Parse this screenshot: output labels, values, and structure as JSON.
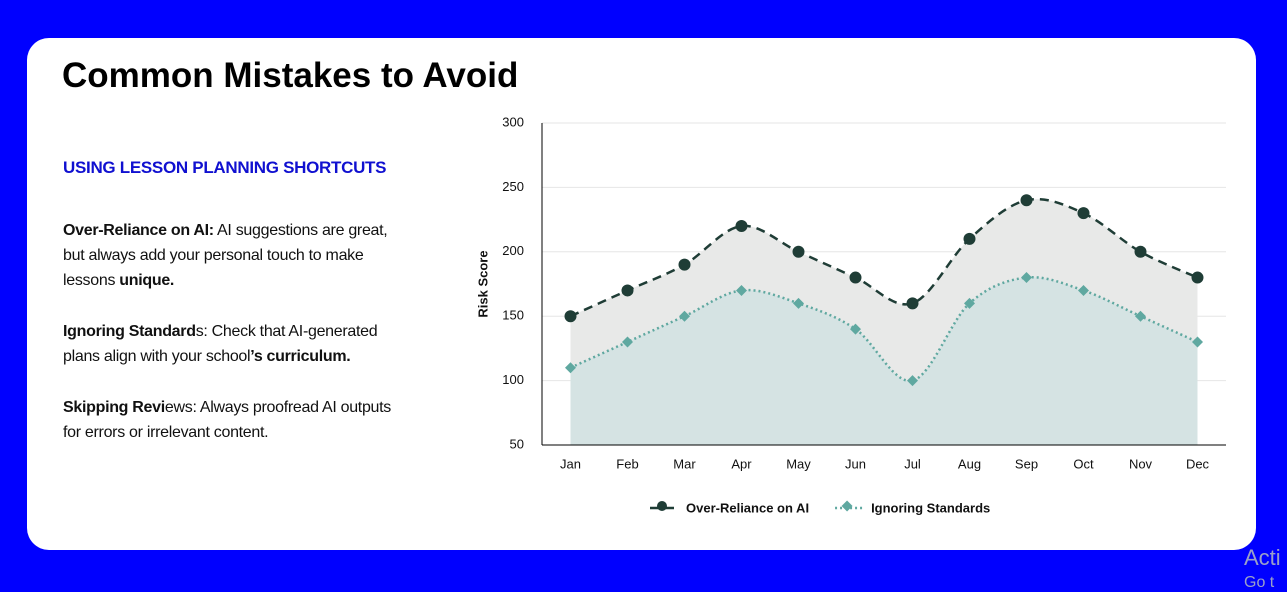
{
  "header": {
    "title": "Common Mistakes to Avoid"
  },
  "sidebar": {
    "heading": "USING LESSON PLANNING SHORTCUTS",
    "items": [
      [
        {
          "text": "Over-Reliance on AI:",
          "bold": true
        },
        {
          "text": " AI suggestions are great, but always add your personal touch to make lessons ",
          "bold": false
        },
        {
          "text": "unique.",
          "bold": true
        }
      ],
      [
        {
          "text": "Ignoring Standard",
          "bold": true
        },
        {
          "text": "s: Check that AI-generated plans align with your school",
          "bold": false
        },
        {
          "text": "’s curriculum.",
          "bold": true
        }
      ],
      [
        {
          "text": "Skipping Revi",
          "bold": true
        },
        {
          "text": "ews: Always proofread AI outputs for errors or irrelevant content.",
          "bold": false
        }
      ]
    ]
  },
  "chart_data": {
    "type": "line",
    "y_label": "Risk Score",
    "categories": [
      "Jan",
      "Feb",
      "Mar",
      "Apr",
      "May",
      "Jun",
      "Jul",
      "Aug",
      "Sep",
      "Oct",
      "Nov",
      "Dec"
    ],
    "series": [
      {
        "name": "Over-Reliance on AI",
        "color": "#1f3d36",
        "area_color": "#e8e9e8",
        "marker": "circle",
        "dash": "dashed",
        "values": [
          150,
          170,
          190,
          220,
          200,
          180,
          160,
          210,
          240,
          230,
          200,
          180
        ]
      },
      {
        "name": "Ignoring Standards",
        "color": "#5fa8a0",
        "area_color": "#d5e3e3",
        "marker": "diamond",
        "dash": "dotted",
        "values": [
          110,
          130,
          150,
          170,
          160,
          140,
          100,
          160,
          180,
          170,
          150,
          130
        ]
      }
    ],
    "ylim": [
      50,
      300
    ],
    "yticks": [
      50,
      100,
      150,
      200,
      250,
      300
    ],
    "grid": true,
    "legend": "bottom"
  },
  "watermark": [
    "Acti",
    "Go t"
  ]
}
